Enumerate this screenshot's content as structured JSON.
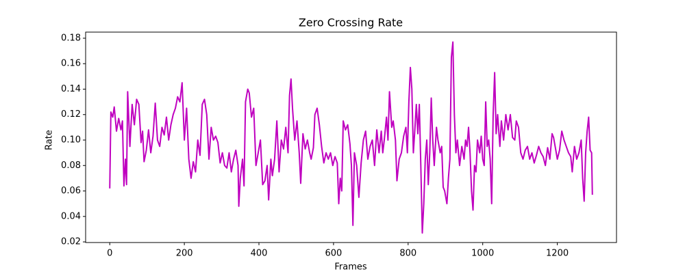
{
  "chart_data": {
    "type": "line",
    "title": "Zero Crossing Rate",
    "xlabel": "Frames",
    "ylabel": "Rate",
    "x": [
      0,
      3,
      8,
      12,
      18,
      24,
      30,
      34,
      38,
      42,
      45,
      48,
      54,
      60,
      66,
      72,
      78,
      84,
      88,
      92,
      98,
      104,
      110,
      116,
      122,
      128,
      134,
      140,
      146,
      152,
      158,
      164,
      170,
      176,
      182,
      188,
      194,
      200,
      206,
      212,
      218,
      224,
      230,
      236,
      242,
      248,
      254,
      260,
      266,
      272,
      278,
      284,
      290,
      296,
      302,
      308,
      314,
      320,
      326,
      332,
      338,
      344,
      346,
      350,
      356,
      360,
      364,
      370,
      374,
      380,
      386,
      392,
      398,
      404,
      410,
      416,
      422,
      426,
      432,
      436,
      442,
      448,
      454,
      460,
      466,
      472,
      478,
      482,
      486,
      490,
      496,
      502,
      508,
      512,
      518,
      524,
      530,
      536,
      540,
      546,
      550,
      556,
      562,
      568,
      574,
      580,
      586,
      592,
      598,
      604,
      610,
      614,
      618,
      622,
      626,
      632,
      638,
      644,
      648,
      652,
      656,
      662,
      668,
      674,
      680,
      686,
      692,
      698,
      704,
      710,
      716,
      722,
      728,
      732,
      736,
      742,
      746,
      750,
      756,
      760,
      766,
      770,
      776,
      782,
      788,
      794,
      798,
      802,
      806,
      810,
      814,
      818,
      822,
      826,
      830,
      834,
      838,
      842,
      846,
      850,
      854,
      858,
      862,
      866,
      870,
      876,
      880,
      886,
      890,
      894,
      898,
      904,
      908,
      912,
      916,
      920,
      924,
      928,
      932,
      938,
      944,
      950,
      954,
      958,
      962,
      966,
      970,
      974,
      978,
      982,
      986,
      992,
      996,
      1000,
      1004,
      1008,
      1012,
      1016,
      1020,
      1024,
      1028,
      1032,
      1036,
      1040,
      1046,
      1050,
      1056,
      1062,
      1068,
      1074,
      1080,
      1086,
      1090,
      1096,
      1102,
      1108,
      1114,
      1120,
      1126,
      1132,
      1138,
      1144,
      1150,
      1156,
      1162,
      1168,
      1174,
      1180,
      1186,
      1190,
      1196,
      1200,
      1206,
      1212,
      1218,
      1224,
      1230,
      1236,
      1240,
      1246,
      1252,
      1258,
      1264,
      1268,
      1272,
      1276,
      1280,
      1284,
      1288,
      1292,
      1294
    ],
    "series": [
      {
        "name": "Zero Crossing Rate",
        "color": "#bf00bf",
        "values": [
          0.062,
          0.122,
          0.118,
          0.126,
          0.107,
          0.117,
          0.108,
          0.115,
          0.064,
          0.085,
          0.065,
          0.138,
          0.095,
          0.128,
          0.112,
          0.132,
          0.128,
          0.098,
          0.107,
          0.083,
          0.092,
          0.108,
          0.09,
          0.103,
          0.129,
          0.1,
          0.095,
          0.11,
          0.104,
          0.118,
          0.1,
          0.112,
          0.12,
          0.125,
          0.134,
          0.13,
          0.145,
          0.1,
          0.125,
          0.085,
          0.07,
          0.083,
          0.075,
          0.1,
          0.088,
          0.128,
          0.132,
          0.12,
          0.085,
          0.11,
          0.1,
          0.103,
          0.098,
          0.082,
          0.09,
          0.08,
          0.078,
          0.09,
          0.075,
          0.085,
          0.092,
          0.08,
          0.048,
          0.07,
          0.085,
          0.064,
          0.13,
          0.14,
          0.137,
          0.118,
          0.125,
          0.08,
          0.09,
          0.1,
          0.065,
          0.068,
          0.08,
          0.053,
          0.085,
          0.072,
          0.085,
          0.115,
          0.075,
          0.1,
          0.093,
          0.11,
          0.09,
          0.135,
          0.148,
          0.125,
          0.1,
          0.115,
          0.09,
          0.066,
          0.105,
          0.093,
          0.1,
          0.09,
          0.085,
          0.094,
          0.12,
          0.125,
          0.112,
          0.095,
          0.082,
          0.09,
          0.085,
          0.09,
          0.08,
          0.087,
          0.082,
          0.05,
          0.07,
          0.06,
          0.115,
          0.108,
          0.112,
          0.097,
          0.08,
          0.033,
          0.09,
          0.08,
          0.055,
          0.082,
          0.1,
          0.107,
          0.085,
          0.095,
          0.1,
          0.08,
          0.108,
          0.09,
          0.107,
          0.09,
          0.1,
          0.118,
          0.1,
          0.138,
          0.11,
          0.115,
          0.1,
          0.068,
          0.085,
          0.09,
          0.103,
          0.11,
          0.09,
          0.13,
          0.157,
          0.14,
          0.09,
          0.108,
          0.128,
          0.105,
          0.128,
          0.08,
          0.027,
          0.05,
          0.085,
          0.1,
          0.065,
          0.09,
          0.133,
          0.1,
          0.08,
          0.11,
          0.1,
          0.09,
          0.095,
          0.063,
          0.06,
          0.05,
          0.07,
          0.085,
          0.165,
          0.177,
          0.12,
          0.09,
          0.1,
          0.08,
          0.095,
          0.085,
          0.1,
          0.095,
          0.11,
          0.09,
          0.06,
          0.045,
          0.08,
          0.075,
          0.1,
          0.09,
          0.103,
          0.085,
          0.08,
          0.13,
          0.095,
          0.1,
          0.085,
          0.05,
          0.12,
          0.153,
          0.105,
          0.12,
          0.095,
          0.115,
          0.1,
          0.12,
          0.108,
          0.12,
          0.102,
          0.1,
          0.115,
          0.11,
          0.09,
          0.085,
          0.092,
          0.095,
          0.085,
          0.09,
          0.082,
          0.088,
          0.095,
          0.09,
          0.087,
          0.08,
          0.094,
          0.085,
          0.105,
          0.102,
          0.092,
          0.085,
          0.092,
          0.107,
          0.1,
          0.095,
          0.09,
          0.087,
          0.075,
          0.095,
          0.085,
          0.09,
          0.1,
          0.07,
          0.052,
          0.09,
          0.107,
          0.118,
          0.092,
          0.09,
          0.057
        ]
      }
    ],
    "xlim": [
      -64.7,
      1358.7
    ],
    "ylim": [
      0.0195,
      0.1848
    ],
    "xticks": [
      0,
      200,
      400,
      600,
      800,
      1000,
      1200
    ],
    "yticks": [
      0.02,
      0.04,
      0.06,
      0.08,
      {
        "value": 0.1,
        "label": "0.10"
      },
      0.12,
      0.14,
      0.16,
      0.18
    ],
    "grid": false
  }
}
